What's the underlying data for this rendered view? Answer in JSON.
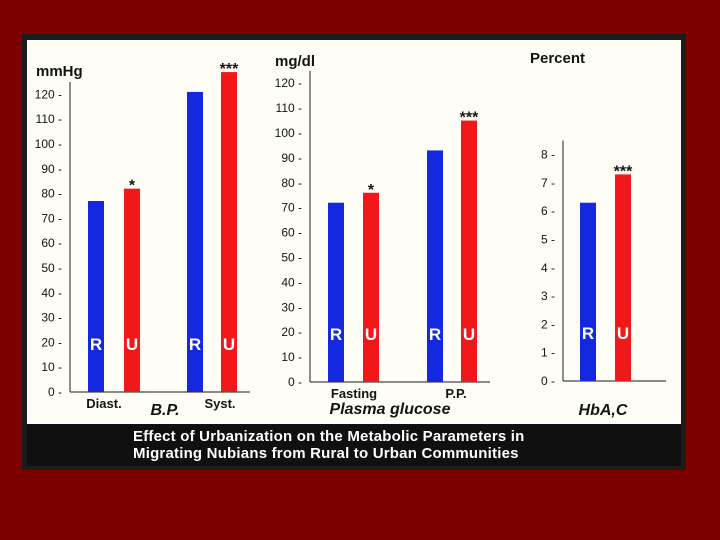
{
  "caption": {
    "line1": "Effect of Urbanization on the Metabolic Parameters in",
    "line2": "Migrating Nubians from Rural to Urban Communities"
  },
  "colors": {
    "rural": "#1428e0",
    "urban": "#f01818",
    "text": "#141414"
  },
  "chart_data": [
    {
      "type": "bar",
      "ylabel": "mmHg",
      "ylim": [
        0,
        125
      ],
      "yticks": [
        0,
        10,
        20,
        30,
        40,
        50,
        60,
        70,
        80,
        90,
        100,
        110,
        120
      ],
      "group_title": "B.P.",
      "categories": [
        "Diast.",
        "Syst."
      ],
      "series": [
        {
          "name": "R",
          "values": [
            77,
            121
          ]
        },
        {
          "name": "U",
          "values": [
            82,
            129
          ]
        }
      ],
      "significance": [
        "*",
        "***"
      ],
      "grid": false
    },
    {
      "type": "bar",
      "ylabel": "mg/dl",
      "ylim": [
        0,
        125
      ],
      "yticks": [
        0,
        10,
        20,
        30,
        40,
        50,
        60,
        70,
        80,
        90,
        100,
        110,
        120
      ],
      "group_title": "Plasma glucose",
      "categories": [
        "Fasting",
        "P.P."
      ],
      "series": [
        {
          "name": "R",
          "values": [
            72,
            93
          ]
        },
        {
          "name": "U",
          "values": [
            76,
            105
          ]
        }
      ],
      "significance": [
        "*",
        "***"
      ],
      "grid": false
    },
    {
      "type": "bar",
      "ylabel": "Percent",
      "ylim": [
        0,
        8.5
      ],
      "yticks": [
        0,
        1,
        2,
        3,
        4,
        5,
        6,
        7,
        8
      ],
      "group_title": "HbA,C",
      "categories": [
        ""
      ],
      "series": [
        {
          "name": "R",
          "values": [
            6.3
          ]
        },
        {
          "name": "U",
          "values": [
            7.3
          ]
        }
      ],
      "significance": [
        "***"
      ],
      "grid": false
    }
  ]
}
